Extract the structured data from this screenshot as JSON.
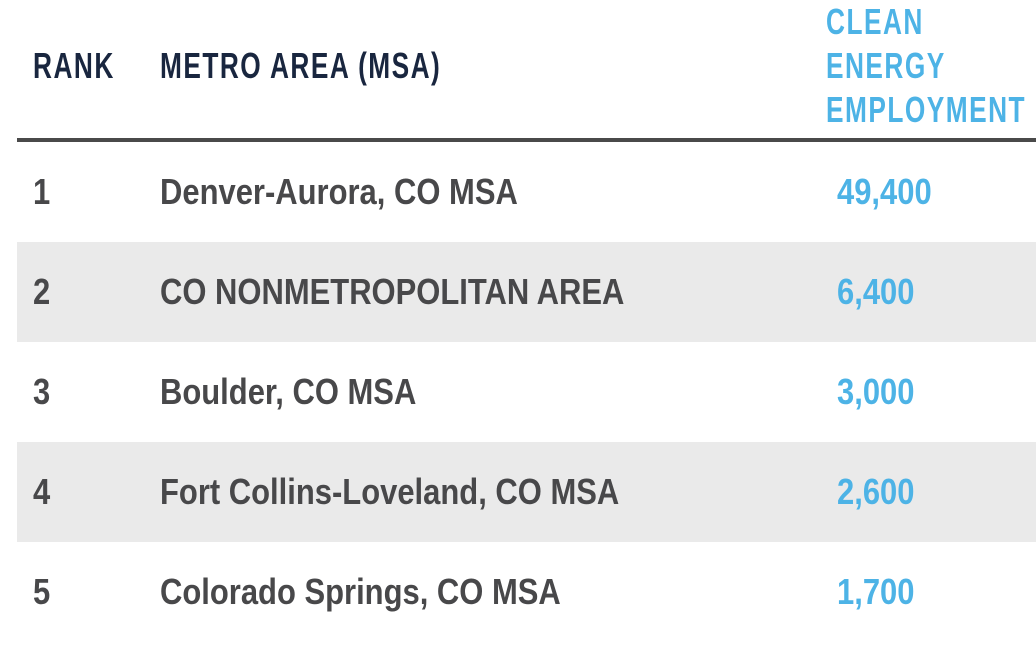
{
  "colors": {
    "header_navy": "#19263f",
    "accent_blue": "#4db3e6",
    "body_text": "#48484a",
    "alt_row_bg": "#eaeaea",
    "header_rule": "#4a4a4a"
  },
  "table": {
    "columns": [
      {
        "label": "RANK"
      },
      {
        "label": "METRO AREA (MSA)"
      },
      {
        "label": "CLEAN ENERGY EMPLOYMENT"
      }
    ],
    "rows": [
      {
        "rank": "1",
        "metro": "Denver-Aurora, CO MSA",
        "value": "49,400"
      },
      {
        "rank": "2",
        "metro": "CO NONMETROPOLITAN AREA",
        "value": "6,400"
      },
      {
        "rank": "3",
        "metro": "Boulder, CO MSA",
        "value": "3,000"
      },
      {
        "rank": "4",
        "metro": "Fort Collins-Loveland, CO MSA",
        "value": "2,600"
      },
      {
        "rank": "5",
        "metro": "Colorado Springs, CO MSA",
        "value": "1,700"
      }
    ]
  },
  "chart_data": {
    "type": "table",
    "title": "",
    "columns": [
      "RANK",
      "METRO AREA (MSA)",
      "CLEAN ENERGY EMPLOYMENT"
    ],
    "rows": [
      [
        1,
        "Denver-Aurora, CO MSA",
        49400
      ],
      [
        2,
        "CO NONMETROPOLITAN AREA",
        6400
      ],
      [
        3,
        "Boulder, CO MSA",
        3000
      ],
      [
        4,
        "Fort Collins-Loveland, CO MSA",
        2600
      ],
      [
        5,
        "Colorado Springs, CO MSA",
        1700
      ]
    ]
  }
}
